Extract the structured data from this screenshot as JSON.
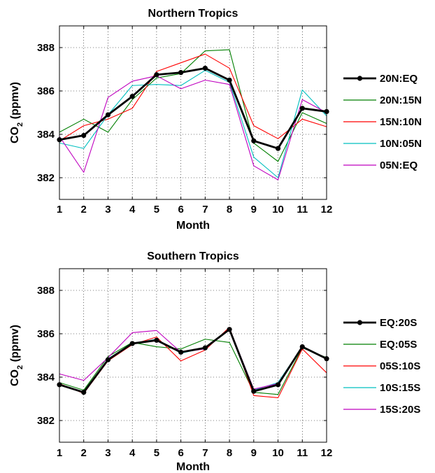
{
  "chart_data": [
    {
      "type": "line",
      "title": "Northern Tropics",
      "xlabel": "Month",
      "ylabel_main": "CO",
      "ylabel_sub": "2",
      "ylabel_unit": " (ppmv)",
      "x": [
        1,
        2,
        3,
        4,
        5,
        6,
        7,
        8,
        9,
        10,
        11,
        12
      ],
      "xlim": [
        1,
        12
      ],
      "ylim": [
        381,
        389
      ],
      "yticks": [
        382,
        384,
        386,
        388
      ],
      "grid": true,
      "legend_position": "right",
      "series": [
        {
          "name": "20N:EQ",
          "color": "#000000",
          "markers": true,
          "values": [
            383.75,
            383.95,
            384.9,
            385.75,
            386.75,
            386.85,
            387.05,
            386.5,
            383.7,
            383.35,
            385.2,
            385.05
          ]
        },
        {
          "name": "20N:15N",
          "color": "#007f00",
          "markers": false,
          "values": [
            384.1,
            384.7,
            384.1,
            385.6,
            386.6,
            386.8,
            387.85,
            387.9,
            383.6,
            382.75,
            385.0,
            384.5
          ]
        },
        {
          "name": "15N:10N",
          "color": "#ff0000",
          "markers": false,
          "values": [
            383.7,
            384.4,
            384.7,
            385.2,
            386.9,
            387.3,
            387.7,
            387.05,
            384.4,
            383.8,
            384.7,
            384.35
          ]
        },
        {
          "name": "10N:05N",
          "color": "#00bfbf",
          "markers": false,
          "values": [
            383.6,
            383.35,
            384.9,
            386.25,
            386.3,
            386.25,
            386.95,
            386.4,
            382.95,
            382.0,
            386.05,
            384.85
          ]
        },
        {
          "name": "05N:EQ",
          "color": "#bf00bf",
          "markers": false,
          "values": [
            383.9,
            382.25,
            385.7,
            386.45,
            386.7,
            386.1,
            386.5,
            386.3,
            382.55,
            381.9,
            385.6,
            385.0
          ]
        }
      ]
    },
    {
      "type": "line",
      "title": "Southern Tropics",
      "xlabel": "Month",
      "ylabel_main": "CO",
      "ylabel_sub": "2",
      "ylabel_unit": " (ppmv)",
      "x": [
        1,
        2,
        3,
        4,
        5,
        6,
        7,
        8,
        9,
        10,
        11,
        12
      ],
      "xlim": [
        1,
        12
      ],
      "ylim": [
        381,
        389
      ],
      "yticks": [
        382,
        384,
        386,
        388
      ],
      "grid": true,
      "legend_position": "right",
      "series": [
        {
          "name": "EQ:20S",
          "color": "#000000",
          "markers": true,
          "values": [
            383.65,
            383.3,
            384.8,
            385.55,
            385.7,
            385.15,
            385.35,
            386.2,
            383.35,
            383.65,
            385.4,
            384.85
          ]
        },
        {
          "name": "EQ:05S",
          "color": "#007f00",
          "markers": false,
          "values": [
            383.75,
            383.4,
            384.95,
            385.6,
            385.4,
            385.3,
            385.75,
            385.6,
            383.3,
            383.2,
            385.35,
            384.9
          ]
        },
        {
          "name": "05S:10S",
          "color": "#ff0000",
          "markers": false,
          "values": [
            383.7,
            383.25,
            384.75,
            385.5,
            385.85,
            384.75,
            385.25,
            386.3,
            383.15,
            383.05,
            385.3,
            384.2
          ]
        },
        {
          "name": "10S:15S",
          "color": "#00bfbf",
          "markers": false,
          "values": [
            383.65,
            383.3,
            384.85,
            385.55,
            385.75,
            385.1,
            385.35,
            386.2,
            383.4,
            383.75,
            385.4,
            384.85
          ]
        },
        {
          "name": "15S:20S",
          "color": "#bf00bf",
          "markers": false,
          "values": [
            384.15,
            383.85,
            384.9,
            386.05,
            386.15,
            385.15,
            385.3,
            386.25,
            383.45,
            383.7,
            385.4,
            384.85
          ]
        }
      ]
    }
  ]
}
